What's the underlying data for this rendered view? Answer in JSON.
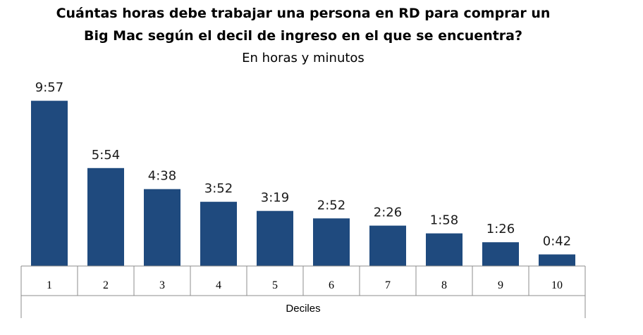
{
  "chart_data": {
    "type": "bar",
    "title_line1": "Cuántas horas debe trabajar una persona en RD para comprar un",
    "title_line2": "Big Mac según el decil de ingreso en el que se encuentra?",
    "subtitle": "En horas y minutos",
    "xlabel": "Deciles",
    "ylabel": "",
    "categories": [
      "1",
      "2",
      "3",
      "4",
      "5",
      "6",
      "7",
      "8",
      "9",
      "10"
    ],
    "values": [
      9.95,
      5.9,
      4.633,
      3.867,
      3.317,
      2.867,
      2.433,
      1.967,
      1.433,
      0.7
    ],
    "data_labels": [
      "9:57",
      "5:54",
      "4:38",
      "3:52",
      "3:19",
      "2:52",
      "2:26",
      "1:58",
      "1:26",
      "0:42"
    ],
    "bar_color": "#1f4a7e",
    "ylim": [
      0,
      10
    ],
    "grid": false,
    "legend": "none"
  }
}
